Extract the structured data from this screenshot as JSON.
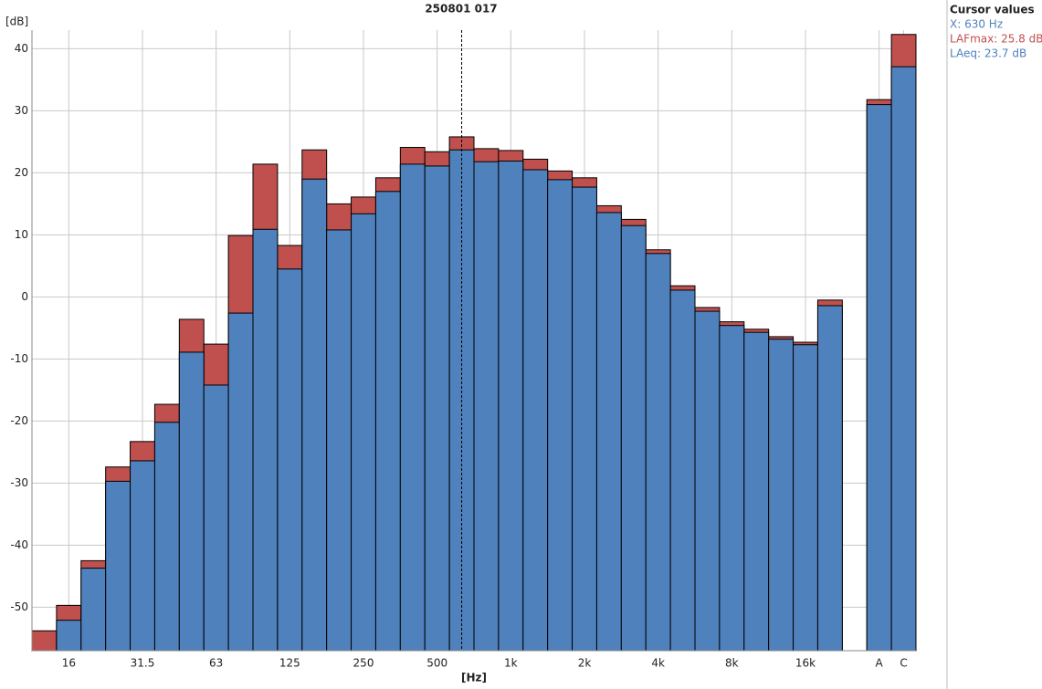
{
  "chart_data": {
    "type": "overlaid-bar",
    "title": "250801 017",
    "y_label": "[dB]",
    "x_label": "[Hz]",
    "categories": [
      null,
      "16",
      null,
      null,
      "31.5",
      null,
      null,
      "63",
      null,
      null,
      "125",
      null,
      null,
      "250",
      null,
      null,
      "500",
      null,
      null,
      "1k",
      null,
      null,
      "2k",
      null,
      null,
      "4k",
      null,
      null,
      "8k",
      null,
      null,
      "16k",
      null
    ],
    "series": [
      {
        "color": "#c0504d",
        "values": [
          -53.8,
          -49.7,
          -42.5,
          -27.4,
          -23.3,
          -17.3,
          -3.6,
          -7.6,
          9.9,
          21.4,
          8.3,
          23.7,
          15.0,
          16.1,
          19.2,
          24.1,
          23.4,
          25.8,
          23.9,
          23.6,
          22.2,
          20.3,
          19.2,
          14.7,
          12.5,
          7.6,
          1.8,
          -1.7,
          -4.0,
          -5.2,
          -6.4,
          -7.3,
          -0.5
        ]
      },
      {
        "color": "#4f81bd",
        "values": [
          null,
          -52.1,
          -43.7,
          -29.7,
          -26.4,
          -20.2,
          -8.9,
          -14.2,
          -2.6,
          10.9,
          4.5,
          19.0,
          10.8,
          13.4,
          17.0,
          21.4,
          21.1,
          23.7,
          21.8,
          21.9,
          20.5,
          18.9,
          17.7,
          13.6,
          11.5,
          7.0,
          1.1,
          -2.3,
          -4.6,
          -5.7,
          -6.8,
          -7.7,
          -1.4
        ]
      }
    ],
    "totals": {
      "categories": [
        "A",
        "C"
      ],
      "series": [
        {
          "values": [
            31.8,
            42.3
          ]
        },
        {
          "values": [
            31.0,
            37.1
          ]
        }
      ]
    },
    "ylim": [
      -57,
      43
    ],
    "yticks": [
      -50,
      -40,
      -30,
      -20,
      -10,
      0,
      10,
      20,
      30,
      40
    ],
    "grid": true,
    "cursor": {
      "title": "Cursor values",
      "lines": [
        "X: 630 Hz",
        "LAFmax: 25.8 dB",
        "LAeq: 23.7 dB"
      ]
    }
  }
}
